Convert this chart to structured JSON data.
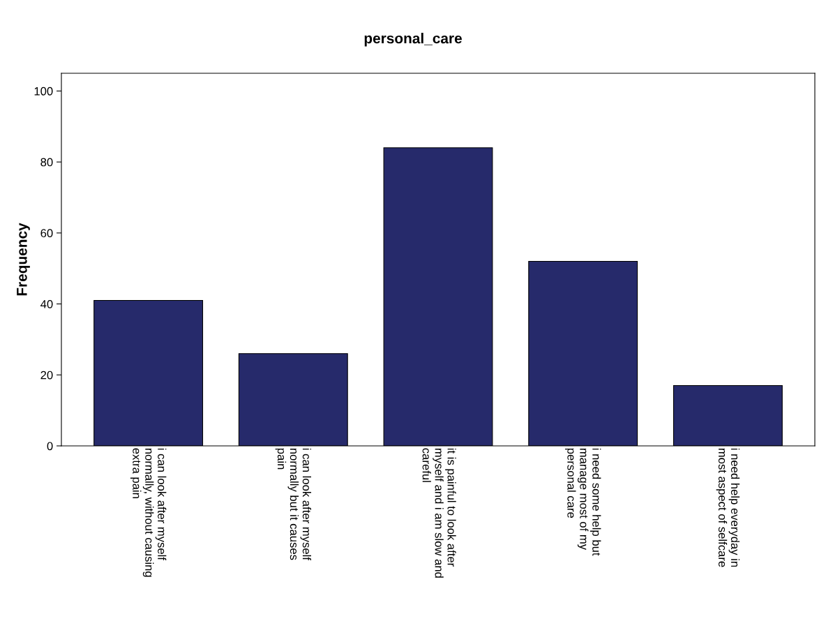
{
  "chart_data": {
    "type": "bar",
    "title": "personal_care",
    "ylabel": "Frequency",
    "categories": [
      "i can look after myself\nnormally, without causing\nextra pain",
      "i can look after myself\nnormally but it causes\npain",
      "it is painful to look after\nmyself and i am slow and\ncareful",
      "i need some help but\nmanage most of my\npersonal care",
      "i need help everyday in\nmost aspect of selfcare"
    ],
    "values": [
      41,
      26,
      84,
      52,
      17
    ],
    "color": "#262a6b",
    "ylim": [
      0,
      105
    ],
    "yticks": [
      0,
      20,
      40,
      60,
      80,
      100
    ],
    "grid": false
  }
}
